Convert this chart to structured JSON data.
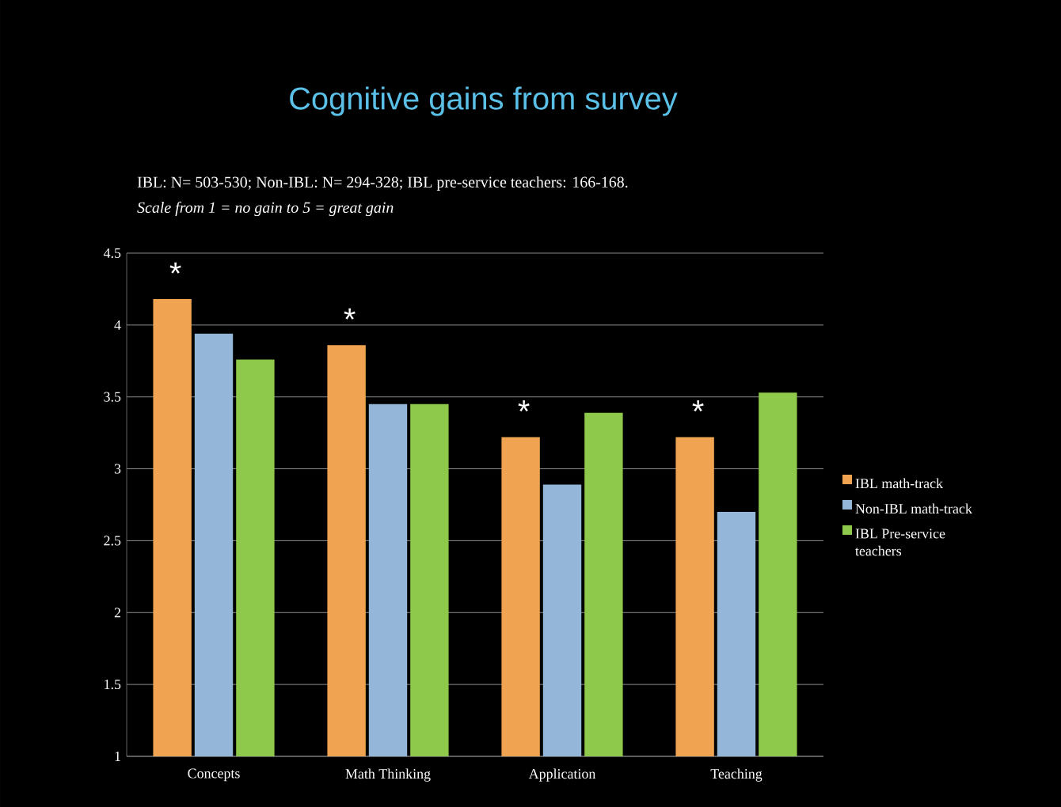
{
  "chart_data": {
    "type": "bar",
    "title": "Cognitive gains from survey",
    "subtitle": "IBL: N= 503-530;  Non-IBL:  N= 294-328;   IBL pre-service teachers:  166-168.",
    "annotations": [
      "Scale from 1 = no gain to 5 = great gain",
      "*",
      "*",
      "*",
      "*"
    ],
    "categories": [
      "Concepts",
      "Math Thinking",
      "Application",
      "Teaching"
    ],
    "series": [
      {
        "name": "IBL math-track",
        "color": "#f0a452",
        "values": [
          4.18,
          3.86,
          3.22,
          3.22
        ]
      },
      {
        "name": "Non-IBL math-track",
        "color": "#94b6d8",
        "values": [
          3.94,
          3.45,
          2.89,
          2.7
        ]
      },
      {
        "name": "IBL Pre-service teachers",
        "color": "#8ec94c",
        "values": [
          3.76,
          3.45,
          3.39,
          3.53
        ]
      }
    ],
    "ylim": [
      1,
      4.5
    ],
    "yticks": [
      1,
      1.5,
      2,
      2.5,
      3,
      3.5,
      4,
      4.5
    ],
    "grid": "y",
    "legend": "right"
  }
}
